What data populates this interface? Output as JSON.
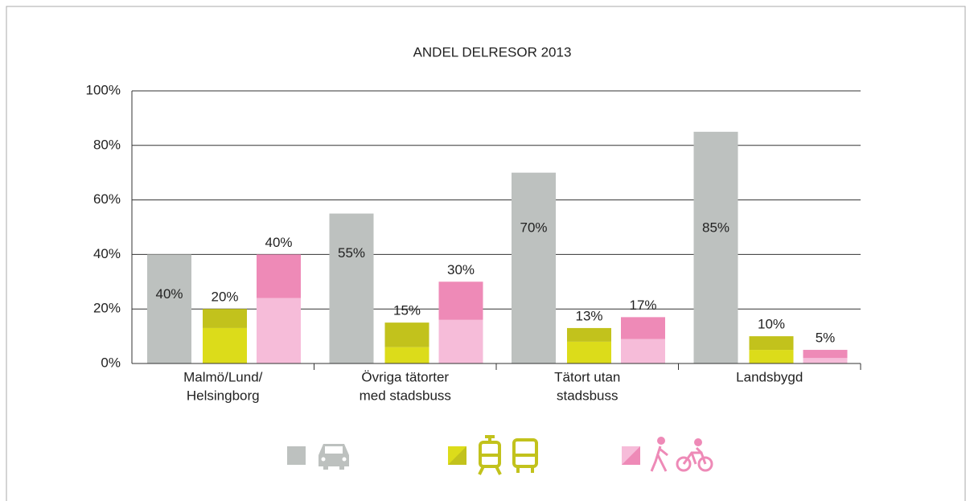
{
  "chart_data": {
    "type": "grouped_stacked_bar",
    "title": "ANDEL DELRESOR 2013",
    "categories": [
      [
        "Malmö/Lund/",
        "Helsingborg"
      ],
      [
        "Övriga tätorter",
        "med stadsbuss"
      ],
      [
        "Tätort utan",
        "stadsbuss"
      ],
      [
        "Landsbygd"
      ]
    ],
    "groups": [
      {
        "series": [
          {
            "color": "#bdc1bf",
            "values": [
              40,
              55,
              70,
              85
            ]
          }
        ],
        "value_labels": [
          "40%",
          "55%",
          "70%",
          "85%"
        ]
      },
      {
        "series": [
          {
            "color": "#dcdc1a",
            "values": [
              13,
              6,
              8,
              5
            ]
          },
          {
            "color": "#c2c21c",
            "values": [
              7,
              9,
              5,
              5
            ]
          }
        ],
        "value_labels": [
          "20%",
          "15%",
          "13%",
          "10%"
        ]
      },
      {
        "series": [
          {
            "color": "#f6bcd9",
            "values": [
              24,
              16,
              9,
              2
            ]
          },
          {
            "color": "#ee8ab7",
            "values": [
              16,
              14,
              8,
              3
            ]
          }
        ],
        "value_labels": [
          "40%",
          "30%",
          "17%",
          "5%"
        ]
      }
    ],
    "ylim": [
      0,
      100
    ],
    "yticks": [
      {
        "value": 0,
        "label": "0%"
      },
      {
        "value": 20,
        "label": "20%"
      },
      {
        "value": 40,
        "label": "40%"
      },
      {
        "value": 60,
        "label": "60%"
      },
      {
        "value": 80,
        "label": "80%"
      },
      {
        "value": 100,
        "label": "100%"
      }
    ],
    "grid": true
  }
}
